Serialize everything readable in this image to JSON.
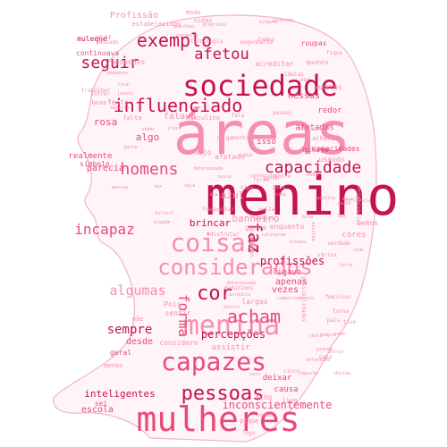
{
  "colors": {
    "silhouette_fill": "#fff4f7",
    "silhouette_stroke": "#f3b4c7",
    "dark": "#c3144b",
    "mid": "#e84a78",
    "light": "#f58fad"
  },
  "words": [
    {
      "text": "menino",
      "tone": "dark"
    },
    {
      "text": "áreas",
      "tone": "light"
    },
    {
      "text": "mulheres",
      "tone": "mid"
    },
    {
      "text": "sociedade",
      "tone": "dark"
    },
    {
      "text": "coisas",
      "tone": "light"
    },
    {
      "text": "menina",
      "tone": "light"
    },
    {
      "text": "capazes",
      "tone": "mid"
    },
    {
      "text": "considerados",
      "tone": "light"
    },
    {
      "text": "exemplo",
      "tone": "dark"
    },
    {
      "text": "influenciado",
      "tone": "dark"
    },
    {
      "text": "pessoas",
      "tone": "dark"
    },
    {
      "text": "acham",
      "tone": "mid"
    },
    {
      "text": "capacidade",
      "tone": "dark"
    },
    {
      "text": "homens",
      "tone": "mid"
    },
    {
      "text": "seguir",
      "tone": "dark"
    },
    {
      "text": "afetou",
      "tone": "dark"
    },
    {
      "text": "incapaz",
      "tone": "mid"
    },
    {
      "text": "algumas",
      "tone": "light"
    },
    {
      "text": "faz",
      "tone": "dark"
    },
    {
      "text": "cor",
      "tone": "dark"
    },
    {
      "text": "forma",
      "tone": "mid"
    },
    {
      "text": "sempre",
      "tone": "dark"
    },
    {
      "text": "percepções",
      "tone": "dark"
    },
    {
      "text": "inconscientemente",
      "tone": "mid"
    },
    {
      "text": "profissões",
      "tone": "dark"
    },
    {
      "text": "inteligentes",
      "tone": "dark"
    },
    {
      "text": "Profissão",
      "tone": "light"
    },
    {
      "text": "rosa",
      "tone": "mid"
    },
    {
      "text": "nessas",
      "tone": "mid"
    },
    {
      "text": "algo",
      "tone": "mid"
    },
    {
      "text": "brincar",
      "tone": "dark"
    },
    {
      "text": "falava",
      "tone": "light"
    },
    {
      "text": "banheiro",
      "tone": "light"
    },
    {
      "text": "desde",
      "tone": "mid"
    },
    {
      "text": "escola",
      "tone": "mid"
    },
    {
      "text": "parecia",
      "tone": "mid"
    },
    {
      "text": "realmente",
      "tone": "mid"
    },
    {
      "text": "símbolo",
      "tone": "mid"
    },
    {
      "text": "afetadas",
      "tone": "mid"
    },
    {
      "text": "capacidades",
      "tone": "mid"
    },
    {
      "text": "apenas",
      "tone": "mid"
    },
    {
      "text": "vezes",
      "tone": "mid"
    },
    {
      "text": "considero",
      "tone": "light"
    },
    {
      "text": "assistir",
      "tone": "light"
    },
    {
      "text": "deixar",
      "tone": "mid"
    },
    {
      "text": "causa",
      "tone": "mid"
    },
    {
      "text": "cores",
      "tone": "light"
    },
    {
      "text": "ligava",
      "tone": "mid"
    },
    {
      "text": "azul",
      "tone": "light"
    },
    {
      "text": "vemos",
      "tone": "light"
    },
    {
      "text": "isso",
      "tone": "mid"
    },
    {
      "text": "redor",
      "tone": "mid"
    },
    {
      "text": "usando",
      "tone": "light"
    },
    {
      "text": "achava",
      "tone": "mid"
    },
    {
      "text": "continuava",
      "tone": "mid"
    },
    {
      "text": "desenhos",
      "tone": "light"
    },
    {
      "text": "roupas",
      "tone": "mid"
    },
    {
      "text": "muleque",
      "tone": "dark"
    },
    {
      "text": "usar",
      "tone": "light"
    },
    {
      "text": "modo",
      "tone": "light"
    },
    {
      "text": "vidas",
      "tone": "light"
    },
    {
      "text": "tempo",
      "tone": "light"
    },
    {
      "text": "exatas",
      "tone": "light"
    },
    {
      "text": "Pois",
      "tone": "light"
    },
    {
      "text": "sentir",
      "tone": "light"
    },
    {
      "text": "largas",
      "tone": "light"
    },
    {
      "text": "geral",
      "tone": "mid"
    },
    {
      "text": "menos",
      "tone": "light"
    },
    {
      "text": "Acho",
      "tone": "light"
    },
    {
      "text": "sei",
      "tone": "mid"
    },
    {
      "text": "feito",
      "tone": "light"
    },
    {
      "text": "falta",
      "tone": "light"
    },
    {
      "text": "vejo",
      "tone": "light"
    },
    {
      "text": "masculino",
      "tone": "light"
    },
    {
      "text": "julgamento",
      "tone": "light"
    },
    {
      "text": "afetado",
      "tone": "light"
    },
    {
      "text": "casa",
      "tone": "light"
    },
    {
      "text": "boas",
      "tone": "light"
    },
    {
      "text": "trabalhar",
      "tone": "light"
    },
    {
      "text": "passado",
      "tone": "light"
    },
    {
      "text": "acreditar",
      "tone": "light"
    },
    {
      "text": "quanto",
      "tone": "light"
    },
    {
      "text": "realizar",
      "tone": "light"
    },
    {
      "text": "vários",
      "tone": "light"
    },
    {
      "text": "possibilidades",
      "tone": "light"
    },
    {
      "text": "deduzimos",
      "tone": "light"
    },
    {
      "text": "torna",
      "tone": "light"
    },
    {
      "text": "tive",
      "tone": "light"
    },
    {
      "text": "mãe",
      "tone": "light"
    },
    {
      "text": "potencial",
      "tone": "light"
    },
    {
      "text": "pique",
      "tone": "light"
    },
    {
      "text": "logo",
      "tone": "light"
    },
    {
      "text": "liga",
      "tone": "light"
    },
    {
      "text": "cinco",
      "tone": "light"
    },
    {
      "text": "comum",
      "tone": "light"
    },
    {
      "text": "grava",
      "tone": "light"
    },
    {
      "text": "enquanto",
      "tone": "light"
    },
    {
      "text": "pois",
      "tone": "light"
    },
    {
      "text": "foram",
      "tone": "light"
    },
    {
      "text": "entre",
      "tone": "light"
    },
    {
      "text": "acharem",
      "tone": "light"
    },
    {
      "text": "pensei",
      "tone": "light"
    },
    {
      "text": "tecnologia",
      "tone": "light"
    },
    {
      "text": "quebra",
      "tone": "light"
    },
    {
      "text": "muita",
      "tone": "light"
    },
    {
      "text": "tipo",
      "tone": "light"
    },
    {
      "text": "sofrer",
      "tone": "light"
    },
    {
      "text": "ideias",
      "tone": "light"
    },
    {
      "text": "ver",
      "tone": "light"
    },
    {
      "text": "fique",
      "tone": "light"
    },
    {
      "text": "engenharia",
      "tone": "light"
    },
    {
      "text": "país",
      "tone": "light"
    },
    {
      "text": "caso",
      "tone": "light"
    },
    {
      "text": "verdade",
      "tone": "light"
    },
    {
      "text": "estabelecidas",
      "tone": "light"
    },
    {
      "text": "feminino",
      "tone": "light"
    },
    {
      "text": "paradigmas",
      "tone": "light"
    },
    {
      "text": "fala",
      "tone": "light"
    },
    {
      "text": "nada",
      "tone": "light"
    },
    {
      "text": "entendido",
      "tone": "light"
    },
    {
      "text": "social",
      "tone": "light"
    },
    {
      "text": "ninguem",
      "tone": "light"
    },
    {
      "text": "determinada",
      "tone": "light"
    },
    {
      "text": "comportamentos",
      "tone": "light"
    },
    {
      "text": "influencia",
      "tone": "light"
    },
    {
      "text": "olhava",
      "tone": "light"
    },
    {
      "text": "meio",
      "tone": "light"
    },
    {
      "text": "pouco",
      "tone": "light"
    },
    {
      "text": "cabe",
      "tone": "light"
    },
    {
      "text": "grande",
      "tone": "light"
    },
    {
      "text": "determinado",
      "tone": "light"
    },
    {
      "text": "acredita",
      "tone": "light"
    },
    {
      "text": "dentro",
      "tone": "light"
    },
    {
      "text": "sempre",
      "tone": "light"
    },
    {
      "text": "entrar",
      "tone": "light"
    },
    {
      "text": "jeito",
      "tone": "light"
    },
    {
      "text": "problema",
      "tone": "light"
    },
    {
      "text": "pequenas",
      "tone": "light"
    },
    {
      "text": "questões",
      "tone": "light"
    },
    {
      "text": "pessoa",
      "tone": "light"
    },
    {
      "text": "ser",
      "tone": "light"
    },
    {
      "text": "ouvia",
      "tone": "light"
    },
    {
      "text": "frequentar",
      "tone": "light"
    },
    {
      "text": "disfrutar",
      "tone": "light"
    },
    {
      "text": "colocaram",
      "tone": "light"
    },
    {
      "text": "dia",
      "tone": "light"
    },
    {
      "text": "seja",
      "tone": "light"
    },
    {
      "text": "vida",
      "tone": "light"
    },
    {
      "text": "escolha",
      "tone": "light"
    },
    {
      "text": "adultos",
      "tone": "light"
    },
    {
      "text": "bem",
      "tone": "light"
    },
    {
      "text": "sido",
      "tone": "light"
    },
    {
      "text": "forte",
      "tone": "light"
    },
    {
      "text": "carreira",
      "tone": "light"
    },
    {
      "text": "progresso",
      "tone": "light"
    },
    {
      "text": "conhecidas",
      "tone": "light"
    },
    {
      "text": "bola",
      "tone": "light"
    },
    {
      "text": "tornou",
      "tone": "light"
    },
    {
      "text": "ficar",
      "tone": "light"
    },
    {
      "text": "jovens",
      "tone": "light"
    },
    {
      "text": "maioria",
      "tone": "light"
    },
    {
      "text": "claro",
      "tone": "light"
    },
    {
      "text": "saber",
      "tone": "light"
    },
    {
      "text": "parte",
      "tone": "light"
    },
    {
      "text": "alguém",
      "tone": "light"
    },
    {
      "text": "difícil",
      "tone": "light"
    },
    {
      "text": "dúvida",
      "tone": "light"
    },
    {
      "text": "imposto",
      "tone": "light"
    },
    {
      "text": "sexo",
      "tone": "light"
    }
  ]
}
